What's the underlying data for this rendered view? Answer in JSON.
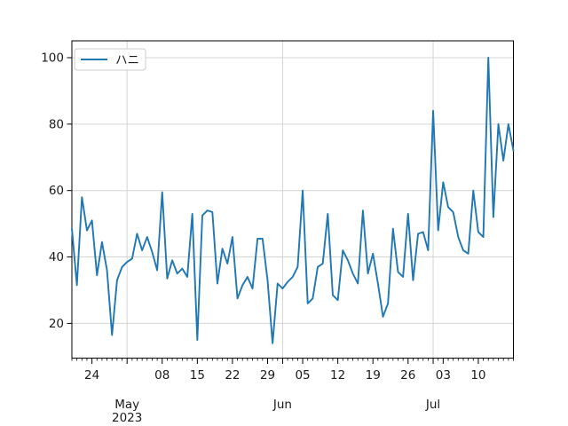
{
  "chart_data": {
    "type": "line",
    "title": "",
    "grid": {
      "horizontal": true,
      "vertical_month_starts": true,
      "color": "#d4d4d4"
    },
    "legend": {
      "position": "upper left",
      "entries": [
        {
          "label": "ハニ",
          "color": "#1f77b4"
        }
      ]
    },
    "series": [
      {
        "name": "ハニ",
        "color": "#1f77b4",
        "start_date": "2023-04-20",
        "frequency": "daily",
        "values": [
          48.5,
          31.5,
          58,
          48,
          51,
          34.5,
          44.5,
          36,
          16.5,
          33,
          37,
          38.5,
          39.5,
          47,
          42,
          46,
          41.5,
          36,
          59.5,
          33.5,
          39,
          35,
          36.5,
          34,
          53,
          15,
          52.5,
          54,
          53.5,
          32,
          42.5,
          38,
          46,
          27.5,
          31.5,
          34,
          30.5,
          45.5,
          45.5,
          33,
          14,
          32,
          30.5,
          32.5,
          34,
          37,
          60,
          26,
          27.5,
          37,
          38,
          53,
          28.5,
          27,
          42,
          39,
          35,
          32,
          54,
          35,
          41,
          32,
          22,
          26,
          48.5,
          35.5,
          34,
          53,
          33,
          47,
          47.5,
          42,
          84,
          48,
          62.5,
          55,
          53.5,
          46,
          42,
          41,
          60,
          47.5,
          46,
          100,
          52,
          80,
          69,
          80,
          72
        ]
      }
    ],
    "x_axis": {
      "minor_ticks": "daily",
      "monday_tick_indices": [
        4,
        11,
        18,
        25,
        32,
        39,
        46,
        53,
        60,
        67,
        74,
        81
      ],
      "day_tick_labels": [
        {
          "index": 4,
          "label": "24"
        },
        {
          "index": 18,
          "label": "08"
        },
        {
          "index": 25,
          "label": "15"
        },
        {
          "index": 32,
          "label": "22"
        },
        {
          "index": 39,
          "label": "29"
        },
        {
          "index": 46,
          "label": "05"
        },
        {
          "index": 53,
          "label": "12"
        },
        {
          "index": 60,
          "label": "19"
        },
        {
          "index": 67,
          "label": "26"
        },
        {
          "index": 74,
          "label": "03"
        },
        {
          "index": 81,
          "label": "10"
        }
      ],
      "month_ticks": [
        {
          "index": 11,
          "label": "May",
          "sublabel": "2023"
        },
        {
          "index": 42,
          "label": "Jun",
          "sublabel": ""
        },
        {
          "index": 72,
          "label": "Jul",
          "sublabel": ""
        }
      ]
    },
    "y_axis": {
      "ticks": [
        20,
        40,
        60,
        80,
        100
      ],
      "tick_labels": [
        "20",
        "40",
        "60",
        "80",
        "100"
      ],
      "lim": [
        9.5,
        105.2
      ]
    }
  }
}
